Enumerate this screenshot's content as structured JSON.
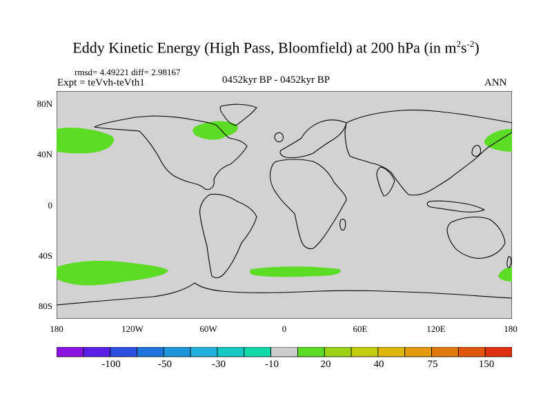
{
  "title": {
    "main": "Eddy Kinetic Energy (High Pass, Bloomfield) at 200 hPa (in m",
    "sup1": "2",
    "mid": "s",
    "sup2": "-2",
    "end": ")"
  },
  "stats": "rmsd= 4.49221 diff= 2.98167",
  "experiment": "Expt = teVvh-teVth1",
  "period": "0452kyr BP - 0452kyr BP",
  "season": "ANN",
  "lat_labels": [
    "80N",
    "40N",
    "0",
    "40S",
    "80S"
  ],
  "lon_labels": [
    "180",
    "120W",
    "60W",
    "0",
    "60E",
    "120E",
    "180"
  ],
  "colorbar": {
    "colors": [
      "#8a13e0",
      "#5a20e8",
      "#2d4fe0",
      "#1f74dc",
      "#1e95d8",
      "#20b2dc",
      "#14c9c4",
      "#10d8a8",
      "#cdcdcd",
      "#5cdc24",
      "#9bd214",
      "#c4cc0e",
      "#dcb80c",
      "#e09a0c",
      "#e07a0c",
      "#e0560c",
      "#dc3010"
    ],
    "labels": [
      "-100",
      "-50",
      "-30",
      "-10",
      "20",
      "40",
      "75",
      "150"
    ]
  },
  "colors": {
    "land_ocean": "#d2d2d2",
    "anomaly_fill": "#5cdc24"
  }
}
